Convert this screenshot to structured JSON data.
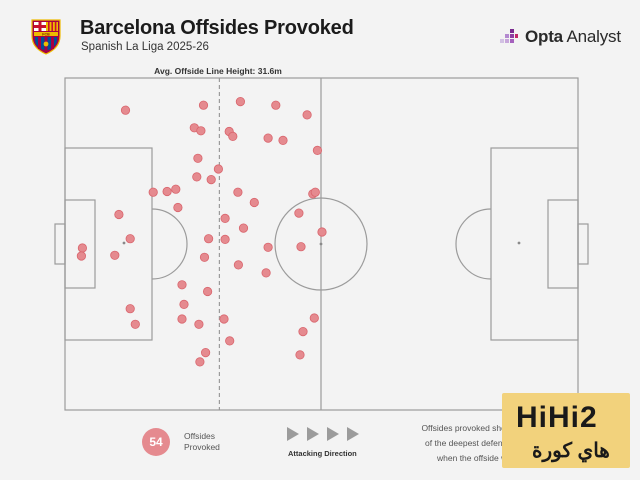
{
  "header": {
    "title": "Barcelona Offsides Provoked",
    "subtitle": "Spanish La Liga 2025-26"
  },
  "crest": {
    "letters": "FCB",
    "colors": [
      "#a50044",
      "#004d98",
      "#edbb00"
    ]
  },
  "brand": {
    "bold": "Opta",
    "rest": " Analyst"
  },
  "colors": {
    "point": "#e58a8f",
    "point_stroke": "#d9656d",
    "pitch_line": "#9b9b9b",
    "avg_line": "#9b9b9b"
  },
  "chart_data": {
    "type": "scatter",
    "title": "Barcelona Offsides Provoked",
    "subtitle": "Spanish La Liga 2025-26",
    "xlabel": "",
    "ylabel": "",
    "xlim": [
      0,
      100
    ],
    "ylim": [
      0,
      100
    ],
    "grid": false,
    "avg_offside_line": {
      "label": "Avg. Offside Line Height: 31.6m",
      "value_m": 31.6
    },
    "points": [
      {
        "x": 11.8,
        "y": 90.3
      },
      {
        "x": 27.0,
        "y": 91.8
      },
      {
        "x": 34.2,
        "y": 92.9
      },
      {
        "x": 41.1,
        "y": 91.8
      },
      {
        "x": 47.2,
        "y": 88.9
      },
      {
        "x": 25.2,
        "y": 85.0
      },
      {
        "x": 26.5,
        "y": 84.1
      },
      {
        "x": 32.0,
        "y": 83.9
      },
      {
        "x": 32.7,
        "y": 82.4
      },
      {
        "x": 39.6,
        "y": 81.9
      },
      {
        "x": 42.5,
        "y": 81.2
      },
      {
        "x": 49.2,
        "y": 78.2
      },
      {
        "x": 25.9,
        "y": 75.8
      },
      {
        "x": 29.9,
        "y": 72.6
      },
      {
        "x": 25.7,
        "y": 70.2
      },
      {
        "x": 28.5,
        "y": 69.4
      },
      {
        "x": 17.2,
        "y": 65.6
      },
      {
        "x": 19.9,
        "y": 65.8
      },
      {
        "x": 21.6,
        "y": 66.5
      },
      {
        "x": 33.7,
        "y": 65.6
      },
      {
        "x": 48.3,
        "y": 65.1
      },
      {
        "x": 48.8,
        "y": 65.6
      },
      {
        "x": 22.0,
        "y": 61.0
      },
      {
        "x": 36.9,
        "y": 62.5
      },
      {
        "x": 10.5,
        "y": 58.9
      },
      {
        "x": 31.2,
        "y": 57.7
      },
      {
        "x": 45.6,
        "y": 59.3
      },
      {
        "x": 34.8,
        "y": 54.8
      },
      {
        "x": 50.1,
        "y": 53.6
      },
      {
        "x": 12.7,
        "y": 51.6
      },
      {
        "x": 28.0,
        "y": 51.6
      },
      {
        "x": 31.2,
        "y": 51.4
      },
      {
        "x": 3.4,
        "y": 48.8
      },
      {
        "x": 3.2,
        "y": 46.4
      },
      {
        "x": 9.7,
        "y": 46.6
      },
      {
        "x": 39.6,
        "y": 49.0
      },
      {
        "x": 46.0,
        "y": 49.2
      },
      {
        "x": 27.2,
        "y": 46.0
      },
      {
        "x": 33.8,
        "y": 43.7
      },
      {
        "x": 39.2,
        "y": 41.3
      },
      {
        "x": 22.8,
        "y": 37.7
      },
      {
        "x": 27.8,
        "y": 35.7
      },
      {
        "x": 23.2,
        "y": 31.8
      },
      {
        "x": 12.7,
        "y": 30.5
      },
      {
        "x": 22.8,
        "y": 27.4
      },
      {
        "x": 31.0,
        "y": 27.4
      },
      {
        "x": 48.6,
        "y": 27.7
      },
      {
        "x": 13.7,
        "y": 25.8
      },
      {
        "x": 26.1,
        "y": 25.8
      },
      {
        "x": 46.4,
        "y": 23.6
      },
      {
        "x": 32.1,
        "y": 20.8
      },
      {
        "x": 27.4,
        "y": 17.3
      },
      {
        "x": 45.8,
        "y": 16.6
      },
      {
        "x": 26.3,
        "y": 14.5
      }
    ]
  },
  "legend": {
    "count": "54",
    "count_label_1": "Offsides",
    "count_label_2": "Provoked",
    "direction_label": "Attacking Direction"
  },
  "note": {
    "line1": "Offsides provoked show",
    "line2": "of the deepest defende",
    "line3": "when the offside wa"
  },
  "watermark": {
    "latin": "HiHi2",
    "arabic": "هاي كورة"
  }
}
